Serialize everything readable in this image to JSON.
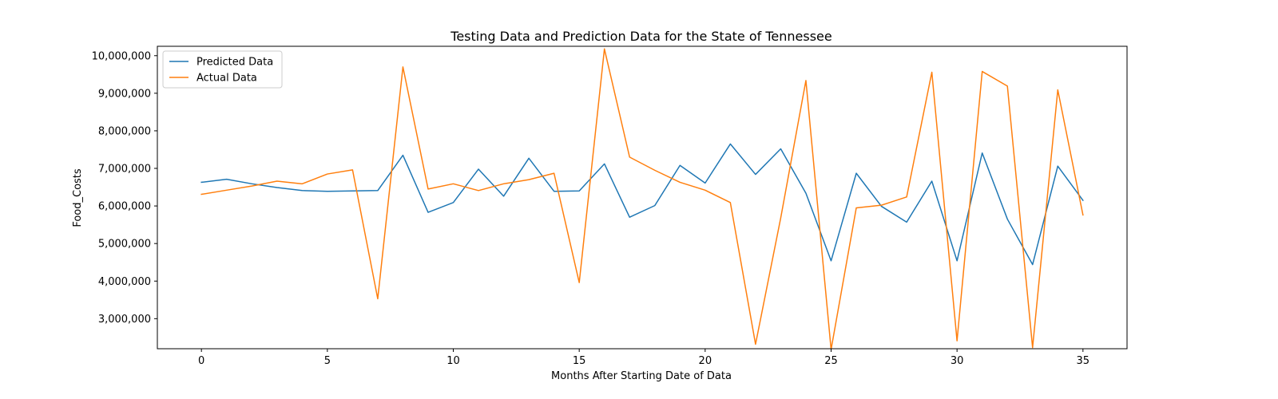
{
  "chart_data": {
    "type": "line",
    "title": "Testing Data and Prediction Data for the State of Tennessee",
    "xlabel": "Months After Starting Date of Data",
    "ylabel": "Food_Costs",
    "xlim": [
      -1.75,
      36.75
    ],
    "ylim": [
      2200000,
      10250000
    ],
    "xticks": [
      0,
      5,
      10,
      15,
      20,
      25,
      30,
      35
    ],
    "xtick_labels": [
      "0",
      "5",
      "10",
      "15",
      "20",
      "25",
      "30",
      "35"
    ],
    "yticks": [
      3000000,
      4000000,
      5000000,
      6000000,
      7000000,
      8000000,
      9000000,
      10000000
    ],
    "ytick_labels": [
      "3,000,000",
      "4,000,000",
      "5,000,000",
      "6,000,000",
      "7,000,000",
      "8,000,000",
      "9,000,000",
      "10,000,000"
    ],
    "grid": false,
    "legend": "top-left",
    "x": [
      0,
      1,
      2,
      3,
      4,
      5,
      6,
      7,
      8,
      9,
      10,
      11,
      12,
      13,
      14,
      15,
      16,
      17,
      18,
      19,
      20,
      21,
      22,
      23,
      24,
      25,
      26,
      27,
      28,
      29,
      30,
      31,
      32,
      33,
      34,
      35
    ],
    "series": [
      {
        "name": "Predicted Data",
        "color": "#1f77b4",
        "values": [
          6630000,
          6710000,
          6590000,
          6490000,
          6410000,
          6390000,
          6400000,
          6410000,
          7350000,
          5830000,
          6090000,
          6980000,
          6260000,
          7270000,
          6390000,
          6400000,
          7120000,
          5700000,
          6010000,
          7080000,
          6610000,
          7650000,
          6840000,
          7520000,
          6340000,
          4540000,
          6870000,
          5990000,
          5570000,
          6660000,
          4540000,
          7410000,
          5650000,
          4440000,
          7060000,
          6150000
        ]
      },
      {
        "name": "Actual Data",
        "color": "#ff7f0e",
        "values": [
          6310000,
          6420000,
          6530000,
          6660000,
          6590000,
          6850000,
          6960000,
          3530000,
          9700000,
          6450000,
          6590000,
          6410000,
          6590000,
          6700000,
          6870000,
          3960000,
          10180000,
          7300000,
          6950000,
          6630000,
          6420000,
          6090000,
          2320000,
          5680000,
          9340000,
          2180000,
          5950000,
          6020000,
          6240000,
          9560000,
          2410000,
          9580000,
          9190000,
          2230000,
          9090000,
          5760000
        ]
      }
    ]
  }
}
